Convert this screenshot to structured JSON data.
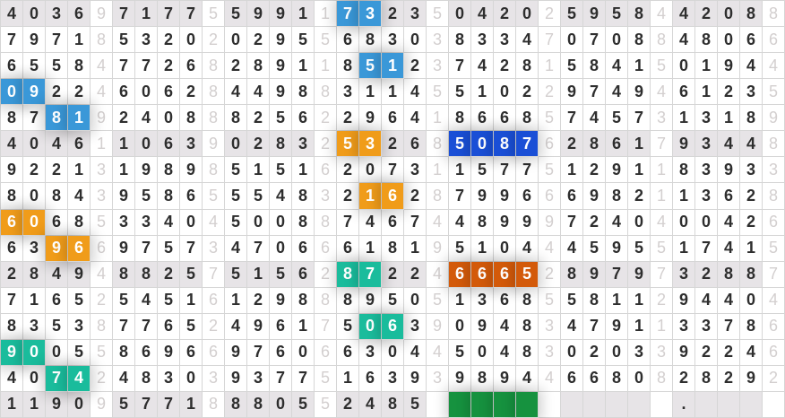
{
  "rows": [
    "40369717755991173235042025958442088",
    "79718532020295568303833470708848066",
    "65584772682891185123742815841501944",
    "09224606284498831145510229749461235",
    "87819240888256229641866857457313189",
    "40461106390283253268508762861793448",
    "92213198985151620731157751291183933",
    "80843958655548321628799666982113628",
    "60685334045008874674489997240400426",
    "63966975734706661819510444595517415",
    "28494882575156287224666528979732887",
    "71652545161298889505136855811294404",
    "83538776524961750639094834791133786",
    "90055869669760663044504830203392246",
    "40742483039377516393989446680828292",
    "1190957718880552485           .    .    ."
  ],
  "shaded_rows": [
    0,
    5,
    10,
    15
  ],
  "highlights": [
    {
      "row": 0,
      "col": 15,
      "len": 2,
      "color": "#3a98d8"
    },
    {
      "row": 2,
      "col": 16,
      "len": 2,
      "color": "#3a98d8"
    },
    {
      "row": 3,
      "col": 0,
      "len": 2,
      "color": "#3a98d8"
    },
    {
      "row": 4,
      "col": 2,
      "len": 2,
      "color": "#3a98d8"
    },
    {
      "row": 5,
      "col": 15,
      "len": 2,
      "color": "#f09c1a"
    },
    {
      "row": 5,
      "col": 20,
      "len": 4,
      "color": "#1a4fd6"
    },
    {
      "row": 7,
      "col": 16,
      "len": 2,
      "color": "#f09c1a"
    },
    {
      "row": 8,
      "col": 0,
      "len": 2,
      "color": "#f09c1a"
    },
    {
      "row": 9,
      "col": 2,
      "len": 2,
      "color": "#f09c1a"
    },
    {
      "row": 10,
      "col": 15,
      "len": 2,
      "color": "#1abc9c"
    },
    {
      "row": 10,
      "col": 20,
      "len": 4,
      "color": "#d35a0a"
    },
    {
      "row": 12,
      "col": 16,
      "len": 2,
      "color": "#1abc9c"
    },
    {
      "row": 13,
      "col": 0,
      "len": 2,
      "color": "#1abc9c"
    },
    {
      "row": 14,
      "col": 2,
      "len": 2,
      "color": "#1abc9c"
    },
    {
      "row": 15,
      "col": 20,
      "len": 4,
      "color": "#16923f"
    }
  ]
}
